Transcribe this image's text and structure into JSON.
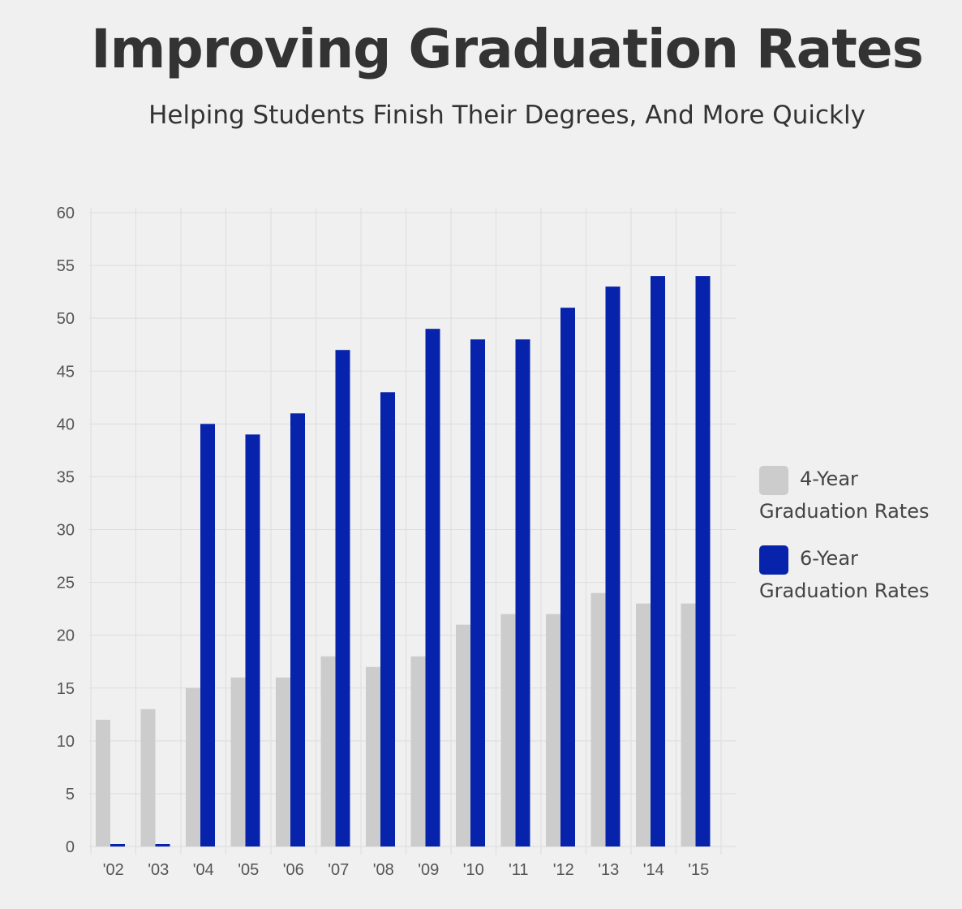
{
  "colors": {
    "background": "#f0f0f0",
    "grid": "#dddddd",
    "four_year": "#cccccc",
    "six_year": "#0723ab"
  },
  "chart_data": {
    "type": "bar",
    "title": "Improving Graduation Rates",
    "subtitle": "Helping Students Finish Their Degrees, And More Quickly",
    "categories": [
      "'02",
      "'03",
      "'04",
      "'05",
      "'06",
      "'07",
      "'08",
      "'09",
      "'10",
      "'11",
      "'12",
      "'13",
      "'14",
      "'15"
    ],
    "series": [
      {
        "name": "4-Year Graduation Rates",
        "color": "#cccccc",
        "values": [
          12,
          13,
          15,
          16,
          16,
          18,
          17,
          18,
          21,
          22,
          22,
          24,
          23,
          23
        ]
      },
      {
        "name": "6-Year Graduation Rates",
        "color": "#0723ab",
        "values": [
          0,
          0,
          40,
          39,
          41,
          47,
          43,
          49,
          48,
          48,
          51,
          53,
          54,
          54
        ]
      }
    ],
    "ylim": [
      0,
      60
    ],
    "yticks": [
      0,
      5,
      10,
      15,
      20,
      25,
      30,
      35,
      40,
      45,
      50,
      55,
      60
    ],
    "grid": true,
    "legend": "right"
  }
}
